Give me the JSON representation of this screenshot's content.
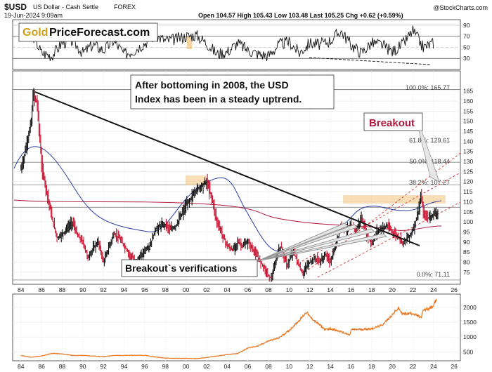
{
  "header": {
    "symbol": "$USD",
    "name": "US Dollar - Cash Settle",
    "exchange": "FOREX",
    "date": "19-Jun-2024 9:09am",
    "quote": "Open 104.57  High 105.43  Low 103.48  Last 105.25  Chg +0.62 (+0.59%)",
    "watermark": "@StockCharts.com",
    "logo_gold": "Gold",
    "logo_rest": "PriceForecast.com"
  },
  "annotations": {
    "uptrend_line1": "After bottoming in 2008, the USD",
    "uptrend_line2": "Index has been in a steady uptrend.",
    "breakout": "Breakout",
    "verifications": "Breakout`s verifications"
  },
  "fib_labels": [
    {
      "label": "100.0%: 165.77",
      "value": 165.77
    },
    {
      "label": "61.8%: 129.61",
      "value": 129.61
    },
    {
      "label": "50.0%: 118.44",
      "value": 118.44
    },
    {
      "label": "38.2%: 107.27",
      "value": 107.27
    },
    {
      "label": "0.0%: 71.11",
      "value": 71.11
    }
  ],
  "chart_data": [
    {
      "type": "line",
      "panel": "RSI",
      "yticks": [
        90,
        70,
        50,
        30
      ],
      "ylim": [
        10,
        100
      ],
      "x": [
        1984,
        1985,
        1986,
        1987,
        1988,
        1989,
        1990,
        1991,
        1992,
        1993,
        1994,
        1995,
        1996,
        1997,
        1998,
        1999,
        2000,
        2001,
        2002,
        2003,
        2004,
        2005,
        2006,
        2007,
        2008,
        2009,
        2010,
        2011,
        2012,
        2013,
        2014,
        2015,
        2016,
        2017,
        2018,
        2019,
        2020,
        2021,
        2022,
        2023,
        2024
      ],
      "values": [
        72,
        78,
        40,
        35,
        58,
        62,
        40,
        55,
        45,
        62,
        38,
        45,
        58,
        72,
        62,
        65,
        70,
        72,
        58,
        38,
        42,
        58,
        45,
        38,
        35,
        55,
        60,
        40,
        58,
        55,
        62,
        80,
        55,
        40,
        58,
        55,
        42,
        55,
        80,
        50,
        58
      ]
    },
    {
      "type": "line",
      "panel": "price",
      "yticks": [
        165,
        160,
        155,
        150,
        145,
        140,
        135,
        130,
        125,
        120,
        115,
        110,
        105,
        100,
        95,
        90,
        85,
        80,
        75
      ],
      "ylim": [
        69,
        175
      ],
      "xticks": [
        "84",
        "86",
        "88",
        "90",
        "92",
        "94",
        "96",
        "98",
        "00",
        "02",
        "04",
        "06",
        "08",
        "10",
        "12",
        "14",
        "16",
        "18",
        "20",
        "22",
        "24",
        "26"
      ],
      "xlim": [
        1983.2,
        2026.6
      ],
      "x": [
        1984.0,
        1984.5,
        1985.0,
        1985.2,
        1985.6,
        1986.0,
        1986.5,
        1987.0,
        1987.5,
        1988.0,
        1988.5,
        1989.0,
        1989.5,
        1990.0,
        1990.5,
        1991.0,
        1991.5,
        1992.0,
        1992.7,
        1993.0,
        1993.5,
        1994.0,
        1994.5,
        1995.0,
        1995.5,
        1996.0,
        1996.5,
        1997.0,
        1997.5,
        1998.0,
        1998.5,
        1999.0,
        1999.5,
        2000.0,
        2000.5,
        2001.0,
        2001.5,
        2002.0,
        2002.5,
        2003.0,
        2003.5,
        2004.0,
        2004.5,
        2005.0,
        2005.5,
        2006.0,
        2006.5,
        2007.0,
        2007.5,
        2008.0,
        2008.3,
        2008.9,
        2009.2,
        2009.8,
        2010.4,
        2010.8,
        2011.3,
        2011.8,
        2012.5,
        2013.0,
        2013.5,
        2014.0,
        2014.5,
        2015.0,
        2015.5,
        2016.0,
        2016.5,
        2017.0,
        2017.5,
        2018.0,
        2018.5,
        2019.0,
        2019.5,
        2020.0,
        2020.5,
        2021.0,
        2021.5,
        2022.0,
        2022.5,
        2022.8,
        2023.0,
        2023.5,
        2024.0,
        2024.45
      ],
      "values": [
        126,
        137,
        150,
        164,
        158,
        128,
        115,
        102,
        92,
        94,
        97,
        100,
        93,
        90,
        82,
        87,
        90,
        80,
        90,
        94,
        92,
        88,
        84,
        81,
        82,
        86,
        88,
        96,
        98,
        99,
        96,
        98,
        103,
        108,
        112,
        116,
        118,
        120,
        112,
        100,
        94,
        88,
        86,
        90,
        88,
        90,
        86,
        82,
        78,
        73,
        72,
        85,
        88,
        78,
        86,
        80,
        74,
        79,
        82,
        80,
        84,
        80,
        88,
        98,
        96,
        98,
        96,
        102,
        94,
        89,
        95,
        97,
        98,
        95,
        93,
        90,
        92,
        96,
        105,
        113,
        104,
        102,
        104,
        105.25
      ]
    },
    {
      "type": "line",
      "panel": "gold",
      "yticks": [
        2000,
        1500,
        1000,
        500
      ],
      "ylim": [
        200,
        2450
      ],
      "xticks": [
        "84",
        "86",
        "88",
        "90",
        "92",
        "94",
        "96",
        "98",
        "00",
        "02",
        "04",
        "06",
        "08",
        "10",
        "12",
        "14",
        "16",
        "18",
        "20",
        "22",
        "24",
        "26"
      ],
      "xlim": [
        1983.2,
        2026.6
      ],
      "x": [
        1984,
        1985,
        1986,
        1987,
        1988,
        1989,
        1990,
        1991,
        1992,
        1993,
        1994,
        1995,
        1996,
        1997,
        1998,
        1999,
        2000,
        2001,
        2002,
        2003,
        2004,
        2005,
        2006,
        2007,
        2008,
        2009,
        2010,
        2011,
        2011.7,
        2012,
        2013,
        2013.5,
        2014,
        2015,
        2015.9,
        2016,
        2017,
        2018,
        2019,
        2020,
        2020.6,
        2021,
        2022,
        2022.8,
        2023,
        2023.5,
        2024,
        2024.3
      ],
      "values": [
        380,
        320,
        360,
        450,
        430,
        380,
        380,
        360,
        340,
        380,
        380,
        385,
        385,
        330,
        290,
        280,
        280,
        270,
        310,
        360,
        410,
        440,
        630,
        700,
        870,
        970,
        1220,
        1570,
        1850,
        1680,
        1400,
        1250,
        1280,
        1180,
        1060,
        1250,
        1260,
        1280,
        1400,
        1750,
        1980,
        1780,
        1800,
        1650,
        1900,
        1950,
        2050,
        2330
      ]
    }
  ]
}
